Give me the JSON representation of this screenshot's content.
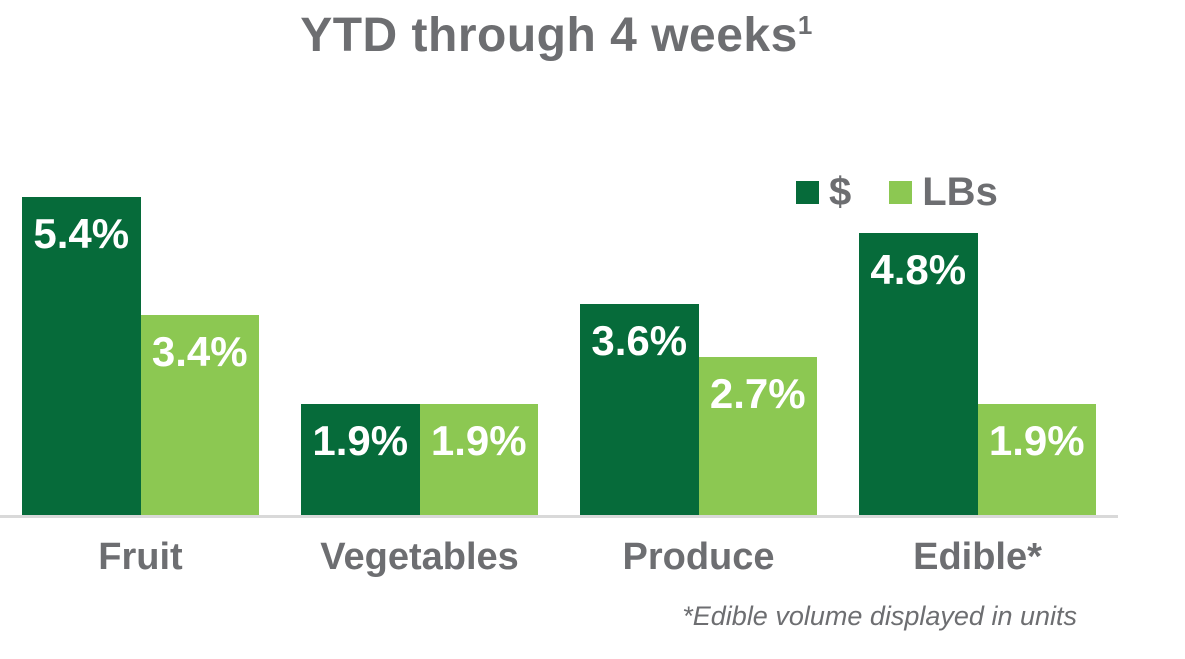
{
  "title": {
    "text": "YTD through 4 weeks",
    "superscript": "1"
  },
  "legend": {
    "items": [
      {
        "label": "$",
        "color": "#066B3A"
      },
      {
        "label": "LBs",
        "color": "#8CC852"
      }
    ]
  },
  "footnote": "*Edible volume displayed in units",
  "colors": {
    "dollars_green": "#066B3A",
    "lbs_green": "#8CC852",
    "text_gray": "#6D6E71",
    "bar_label_white": "#FFFFFF",
    "baseline_gray": "#D9D9D9"
  },
  "chart_data": {
    "type": "bar",
    "title": "YTD through 4 weeks¹",
    "categories": [
      "Fruit",
      "Vegetables",
      "Produce",
      "Edible*"
    ],
    "series": [
      {
        "name": "$",
        "color": "#066B3A",
        "values": [
          5.4,
          1.9,
          3.6,
          4.8
        ],
        "labels": [
          "5.4%",
          "1.9%",
          "3.6%",
          "4.8%"
        ]
      },
      {
        "name": "LBs",
        "color": "#8CC852",
        "values": [
          3.4,
          1.9,
          2.7,
          1.9
        ],
        "labels": [
          "3.4%",
          "1.9%",
          "2.7%",
          "1.9%"
        ]
      }
    ],
    "unit": "percent",
    "xlabel": "",
    "ylabel": "",
    "ylim": [
      0,
      5.8
    ],
    "grid": false,
    "axis_ticks_visible": false,
    "legend_position": "top-right",
    "data_labels": "inside-top",
    "footnote": "*Edible volume displayed in units"
  }
}
